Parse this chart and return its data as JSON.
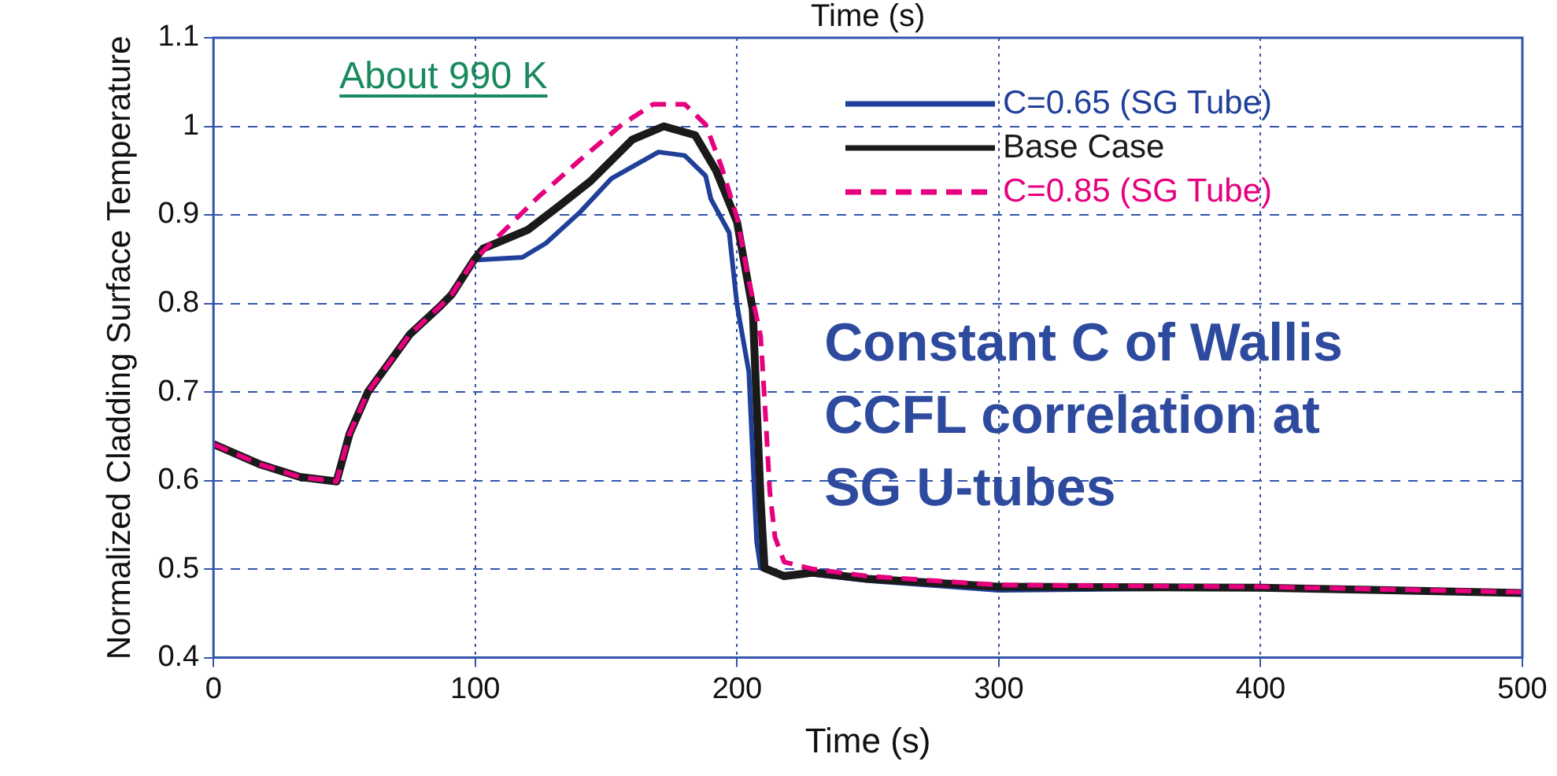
{
  "chart_data": {
    "type": "line",
    "xlabel": "Time (s)",
    "ylabel": "Normalized Cladding Surface Temperature",
    "annotations": [
      "Time (s)",
      "About 990 K",
      "Constant C of Wallis CCFL correlation at SG U-tubes"
    ],
    "xlim": [
      0,
      500
    ],
    "xticks": [
      0,
      100,
      200,
      300,
      400,
      500
    ],
    "ylim": [
      0.4,
      1.1
    ],
    "yticks": [
      0.4,
      0.5,
      0.6,
      0.7,
      0.8,
      0.9,
      1,
      1.1
    ],
    "grid": true,
    "legend": "top right",
    "marker": "none",
    "series": [
      {
        "name": "C=0.65 (SG Tube)",
        "color": "#1f3f99",
        "line_style": "solid",
        "x": [
          99.5,
          118,
          127,
          140,
          152,
          170,
          180,
          188,
          190,
          197,
          200,
          204.5,
          207.5,
          209,
          218,
          229,
          250,
          300,
          400,
          500
        ],
        "values": [
          0.849,
          0.852,
          0.868,
          0.903,
          0.941,
          0.971,
          0.967,
          0.944,
          0.918,
          0.88,
          0.798,
          0.723,
          0.531,
          0.501,
          0.494,
          0.494,
          0.487,
          0.476,
          0.479,
          0.473
        ]
      },
      {
        "name": "Base Case",
        "color": "#1a1a1a",
        "line_style": "solid",
        "x": [
          0,
          18,
          33,
          47,
          52,
          59,
          75,
          87,
          91,
          99.5,
          103,
          120,
          132,
          144,
          160,
          172,
          184,
          192,
          200,
          206,
          209,
          210.5,
          218,
          229,
          250,
          300,
          400,
          500
        ],
        "values": [
          0.641,
          0.618,
          0.604,
          0.599,
          0.653,
          0.7,
          0.765,
          0.798,
          0.81,
          0.849,
          0.862,
          0.883,
          0.91,
          0.938,
          0.985,
          1.0,
          0.99,
          0.95,
          0.892,
          0.793,
          0.578,
          0.501,
          0.492,
          0.496,
          0.489,
          0.48,
          0.479,
          0.473
        ]
      },
      {
        "name": "C=0.85 (SG Tube)",
        "color": "#e6007e",
        "line_style": "dashed",
        "x": [
          0,
          18,
          33,
          47,
          52,
          59,
          75,
          87,
          91,
          99.5,
          112,
          124,
          140,
          156,
          168,
          180,
          188,
          194,
          200,
          204,
          209,
          210.5,
          212.5,
          214.5,
          218,
          229,
          250,
          300,
          400,
          500
        ],
        "values": [
          0.641,
          0.618,
          0.604,
          0.599,
          0.653,
          0.7,
          0.765,
          0.798,
          0.81,
          0.849,
          0.885,
          0.92,
          0.962,
          1.002,
          1.025,
          1.025,
          1.002,
          0.955,
          0.897,
          0.833,
          0.763,
          0.693,
          0.588,
          0.536,
          0.508,
          0.5,
          0.492,
          0.482,
          0.48,
          0.474
        ]
      }
    ]
  }
}
